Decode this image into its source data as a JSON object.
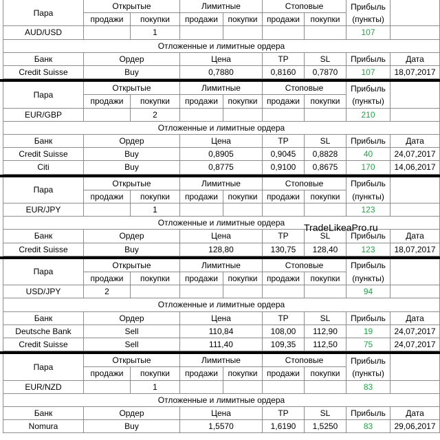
{
  "labels": {
    "pair": "Пара",
    "open": "Открытые",
    "limit": "Лимитные",
    "stop": "Стоповые",
    "profit": "Прибыль",
    "sell": "продажи",
    "buy": "покупки",
    "points": "(пункты)",
    "pending_title": "Отложенные и лимитные ордера",
    "bank": "Банк",
    "order": "Ордер",
    "price": "Цена",
    "tp": "TP",
    "sl": "SL",
    "date": "Дата"
  },
  "watermark": "TradeLikeaPro.ru",
  "colors": {
    "profit": "#22a046",
    "separator": "#000000",
    "grid": "#8c8c8c"
  },
  "blocks": [
    {
      "pair": "AUD/USD",
      "open_sell": "",
      "open_buy": "1",
      "limit_sell": "",
      "limit_buy": "",
      "stop_sell": "",
      "stop_buy": "",
      "profit": "107",
      "orders": [
        {
          "bank": "Credit Suisse",
          "order": "Buy",
          "price": "0,7880",
          "tp": "0,8160",
          "sl": "0,7870",
          "profit": "107",
          "date": "18,07,2017"
        }
      ]
    },
    {
      "pair": "EUR/GBP",
      "open_sell": "",
      "open_buy": "2",
      "limit_sell": "",
      "limit_buy": "",
      "stop_sell": "",
      "stop_buy": "",
      "profit": "210",
      "orders": [
        {
          "bank": "Credit Suisse",
          "order": "Buy",
          "price": "0,8905",
          "tp": "0,9045",
          "sl": "0,8828",
          "profit": "40",
          "date": "24,07,2017"
        },
        {
          "bank": "Citi",
          "order": "Buy",
          "price": "0,8775",
          "tp": "0,9100",
          "sl": "0,8675",
          "profit": "170",
          "date": "14,06,2017"
        }
      ]
    },
    {
      "pair": "EUR/JPY",
      "open_sell": "",
      "open_buy": "1",
      "limit_sell": "",
      "limit_buy": "",
      "stop_sell": "",
      "stop_buy": "",
      "profit": "123",
      "orders": [
        {
          "bank": "Credit Suisse",
          "order": "Buy",
          "price": "128,80",
          "tp": "130,75",
          "sl": "128,40",
          "profit": "123",
          "date": "18,07,2017"
        }
      ]
    },
    {
      "pair": "USD/JPY",
      "open_sell": "2",
      "open_buy": "",
      "limit_sell": "",
      "limit_buy": "",
      "stop_sell": "",
      "stop_buy": "",
      "profit": "94",
      "orders": [
        {
          "bank": "Deutsche Bank",
          "order": "Sell",
          "price": "110,84",
          "tp": "108,00",
          "sl": "112,90",
          "profit": "19",
          "date": "24,07,2017"
        },
        {
          "bank": "Credit Suisse",
          "order": "Sell",
          "price": "111,40",
          "tp": "109,35",
          "sl": "112,50",
          "profit": "75",
          "date": "24,07,2017"
        }
      ]
    },
    {
      "pair": "EUR/NZD",
      "open_sell": "",
      "open_buy": "1",
      "limit_sell": "",
      "limit_buy": "",
      "stop_sell": "",
      "stop_buy": "",
      "profit": "83",
      "orders": [
        {
          "bank": "Nomura",
          "order": "Buy",
          "price": "1,5570",
          "tp": "1,6190",
          "sl": "1,5250",
          "profit": "83",
          "date": "29,06,2017"
        }
      ]
    }
  ]
}
